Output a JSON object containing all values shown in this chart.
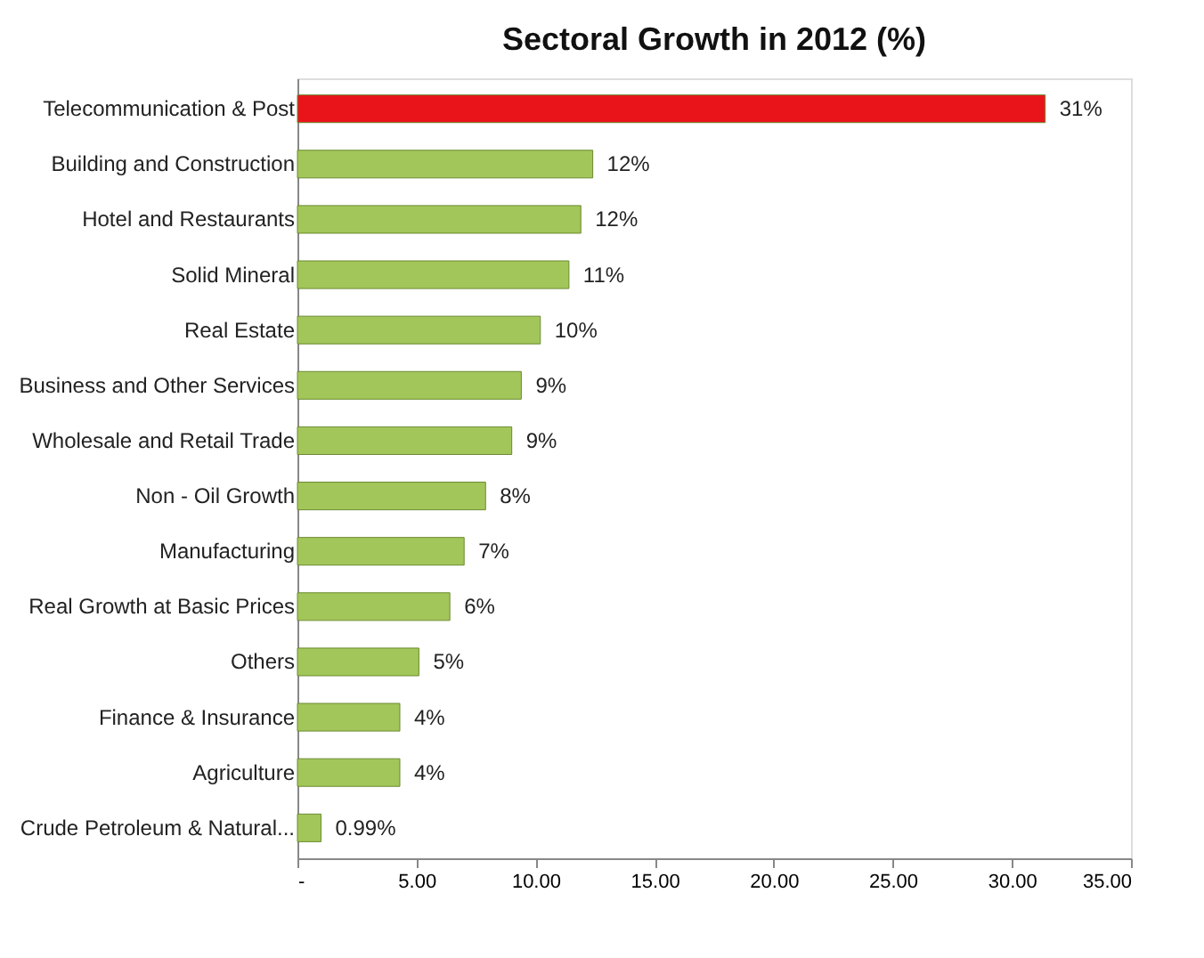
{
  "chart_data": {
    "type": "bar",
    "orientation": "horizontal",
    "title": "Sectoral Growth in 2012 (%)",
    "categories": [
      "Telecommunication & Post",
      "Building and Construction",
      "Hotel and Restaurants",
      "Solid Mineral",
      "Real Estate",
      "Business and Other Services",
      "Wholesale and Retail Trade",
      "Non - Oil Growth",
      "Manufacturing",
      "Real Growth at Basic Prices",
      "Others",
      "Finance & Insurance",
      "Agriculture",
      "Crude Petroleum & Natural..."
    ],
    "values": [
      31.4,
      12.4,
      11.9,
      11.4,
      10.2,
      9.4,
      9.0,
      7.9,
      7.0,
      6.4,
      5.1,
      4.3,
      4.3,
      0.99
    ],
    "value_labels": [
      "31%",
      "12%",
      "12%",
      "11%",
      "10%",
      "9%",
      "9%",
      "8%",
      "7%",
      "6%",
      "5%",
      "4%",
      "4%",
      "0.99%"
    ],
    "colors": [
      "#e8141a",
      "#a2c65a",
      "#a2c65a",
      "#a2c65a",
      "#a2c65a",
      "#a2c65a",
      "#a2c65a",
      "#a2c65a",
      "#a2c65a",
      "#a2c65a",
      "#a2c65a",
      "#a2c65a",
      "#a2c65a",
      "#a2c65a"
    ],
    "xlim": [
      0,
      35
    ],
    "xticks": [
      {
        "value": 0,
        "label": "-"
      },
      {
        "value": 5,
        "label": "5.00"
      },
      {
        "value": 10,
        "label": "10.00"
      },
      {
        "value": 15,
        "label": "15.00"
      },
      {
        "value": 20,
        "label": "20.00"
      },
      {
        "value": 25,
        "label": "25.00"
      },
      {
        "value": 30,
        "label": "30.00"
      },
      {
        "value": 35,
        "label": "35.00"
      }
    ],
    "grid": false
  }
}
